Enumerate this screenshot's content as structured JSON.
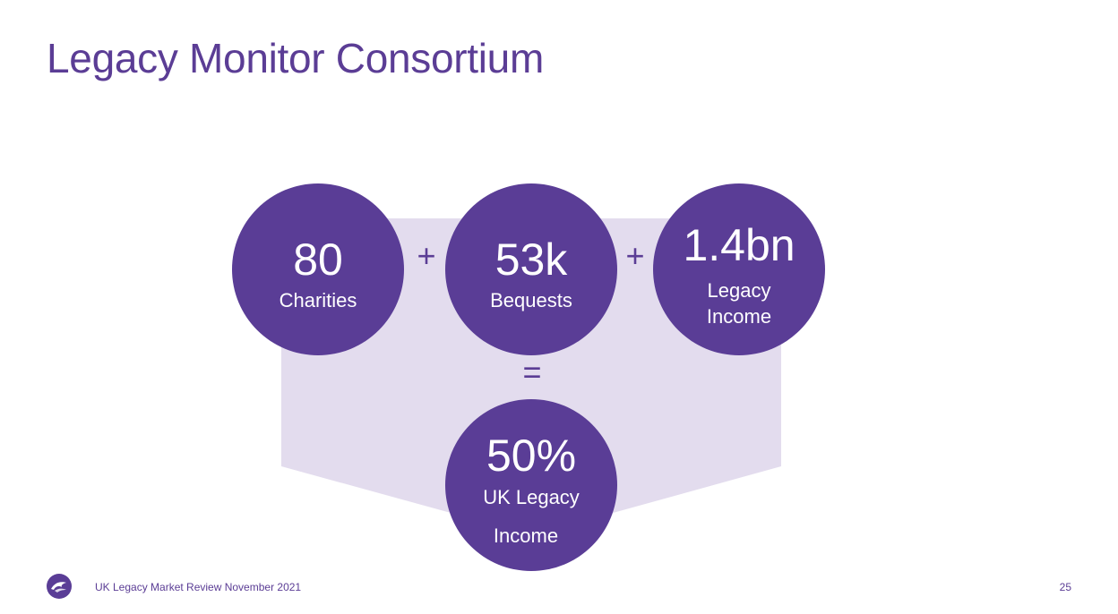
{
  "slide": {
    "title": "Legacy Monitor Consortium"
  },
  "stats": {
    "charities": {
      "value": "80",
      "label": "Charities"
    },
    "bequests": {
      "value": "53k",
      "label": "Bequests"
    },
    "income": {
      "value": "1.4bn",
      "label_line1": "Legacy",
      "label_line2": "Income"
    },
    "share": {
      "value": "50%",
      "label_line1": "UK Legacy",
      "label_line2": "Income"
    }
  },
  "operators": {
    "plus1": "+",
    "plus2": "+",
    "equals": "="
  },
  "footer": {
    "text": "UK Legacy Market Review November 2021",
    "page_number": "25"
  },
  "colors": {
    "primary": "#5a3d96",
    "backdrop": "#e3dcee",
    "background": "#ffffff"
  }
}
